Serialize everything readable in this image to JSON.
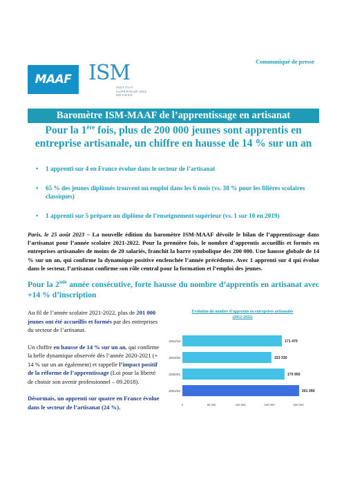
{
  "header": {
    "press_label": "Communiqué de presse",
    "logo_maaf_text": "MAAF",
    "logo_ism_text": "ISM",
    "logo_ism_sub": "INSTITUT SUPÉRIEUR DES MÉTIERS"
  },
  "banner_title": "Baromètre ISM-MAAF de l’apprentissage en artisanat",
  "subtitle": {
    "part1": "Pour la 1",
    "sup": "ère",
    "part2": " fois, plus de 200 000 jeunes sont apprentis en entreprise artisanale, un chiffre en hausse de 14 % sur un an"
  },
  "bullets": [
    "1 apprenti sur 4 en France évolue dans le secteur de l’artisanat",
    "65 % des jeunes diplômés trouvent un emploi dans les 6 mois (vs. 38 % pour les filières scolaires classiques)",
    "1 apprenti sur 5 prépare un diplôme de l’enseignement supérieur (vs. 1 sur 10 en 2019)"
  ],
  "intro": {
    "dateline": "Paris, le 25 août 2023",
    "text": " – La nouvelle édition du baromètre ISM-MAAF dévoile le bilan de l’apprentissage dans l’artisanat pour l’année scolaire 2021-2022. Pour la première fois, le nombre d’apprentis accueillis et formés en entreprises artisanales de moins de 20 salariés, franchit la barre symbolique des 200 000. Une hausse globale de 14 % sur un an, qui confirme la dynamique positive enclenchée l’année précédente. Avec 1 apprenti sur 4 qui évolue dans le secteur, l’artisanat confirme son rôle central pour la formation et l’emploi des jeunes."
  },
  "section": {
    "part1": "Pour la 2",
    "sup": "nde",
    "part2": " année consécutive, forte hausse du nombre d’apprentis en artisanat avec +14 % d’inscription"
  },
  "paragraphs": {
    "p1_a": "Au fil de l’année scolaire 2021-2022, plus de ",
    "p1_hl": "201 000 jeunes ont été accueillis et formés",
    "p1_b": " par des entreprises du secteur de l’artisanat.",
    "p2_a": "Un chiffre ",
    "p2_hl1": "en hausse de 14 % sur un an",
    "p2_b": ", qui confirme la belle dynamique observée dès l’année 2020-2021 (+ 14 % sur un an également) et rappelle ",
    "p2_hl2": "l’impact positif de la réforme de l’apprentissage",
    "p2_c": " (Loi pour la liberté de choisir son avenir professionnel – 09.2018).",
    "p3_hl": "Désormais, un apprenti sur quatre en France évolue dans le secteur de l’artisanat (24 %)."
  },
  "chart_data": {
    "type": "bar",
    "orientation": "horizontal",
    "title": "Évolution du nombre d’apprentis en entreprises artisanales",
    "subtitle": "(2012-2022)",
    "categories": [
      "2012/13",
      "2019/20",
      "2020/21",
      "2021/22"
    ],
    "values": [
      171470,
      153330,
      175950,
      201090
    ],
    "value_labels": [
      "171 470",
      "153 330",
      "175 950",
      "201 090"
    ],
    "xlim": [
      0,
      200000
    ],
    "ticks": [
      0,
      50000,
      100000,
      150000,
      200000
    ],
    "tick_labels": [
      "0",
      "50 000",
      "100 000",
      "150 000",
      "200 000"
    ],
    "bar_color": "#43c1e6",
    "last_bar_color": "#3a6fe0"
  }
}
